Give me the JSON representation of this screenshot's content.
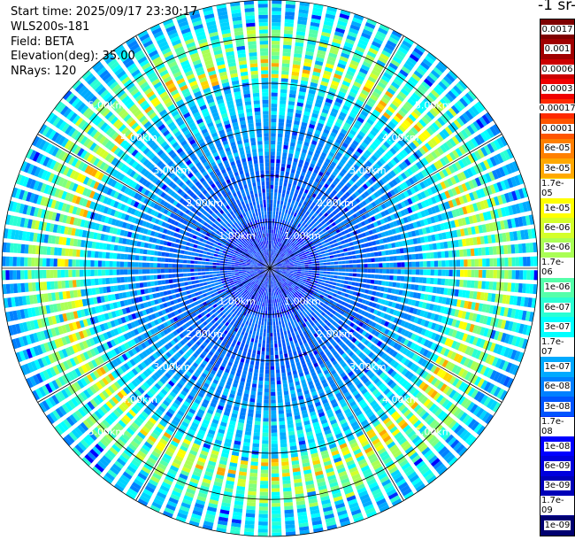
{
  "info": {
    "start_time": "Start time: 2025/09/17 23:30:17",
    "instrument": "WLS200s-181",
    "field": "Field: BETA",
    "elevation": "Elevation(deg): 35.00",
    "nrays": "NRays: 120"
  },
  "chart_data": {
    "type": "heatmap",
    "projection": "polar-ppi",
    "range_max_km": 5.8,
    "range_ring_labels": [
      "1.00km",
      "2.00km",
      "3.00km",
      "4.00km",
      "5.00km"
    ],
    "nrays": 120,
    "colorbar_title": "-1 sr-",
    "colorbar_labels": [
      "0.0017",
      "0.001",
      "0.0006",
      "0.0003",
      "0.00017",
      "0.0001",
      "6e-05",
      "3e-05",
      "1.7e-05",
      "1e-05",
      "6e-06",
      "3e-06",
      "1.7e-06",
      "1e-06",
      "6e-07",
      "3e-07",
      "1.7e-07",
      "1e-07",
      "6e-08",
      "3e-08",
      "1.7e-08",
      "1e-08",
      "6e-09",
      "3e-09",
      "1.7e-09",
      "1e-09"
    ],
    "colorbar_colors": [
      "#7f0000",
      "#a00000",
      "#cc0000",
      "#f00000",
      "#ff2a00",
      "#ff5500",
      "#ff8000",
      "#ffa800",
      "#ffd400",
      "#ffff00",
      "#d4ff2a",
      "#aaff55",
      "#80ff80",
      "#55ffaa",
      "#2affd4",
      "#00ffff",
      "#00d4ff",
      "#00aaff",
      "#0080ff",
      "#0055ff",
      "#002aff",
      "#0000ff",
      "#0000dd",
      "#0000b8",
      "#000094",
      "#000070"
    ]
  }
}
